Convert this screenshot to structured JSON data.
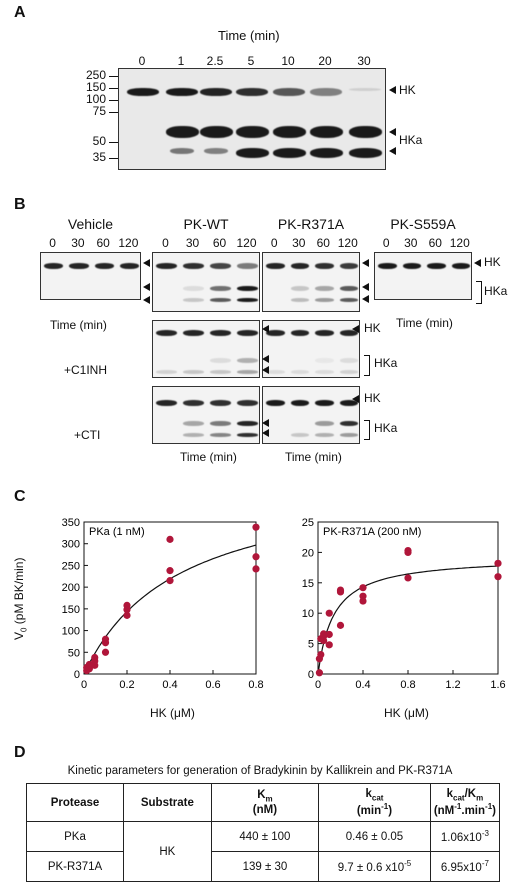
{
  "panelA": {
    "label": "A",
    "title": "Time (min)",
    "times": [
      "0",
      "1",
      "2.5",
      "5",
      "10",
      "20",
      "30"
    ],
    "mw": [
      "250",
      "150",
      "100",
      "75",
      "50",
      "35"
    ],
    "hk": "HK",
    "hka": "HKa"
  },
  "panelB": {
    "label": "B",
    "groups": [
      {
        "title": "Vehicle",
        "times": [
          "0",
          "30",
          "60",
          "120"
        ],
        "xlabel": "Time (min)"
      },
      {
        "title": "PK-WT",
        "times": [
          "0",
          "30",
          "60",
          "120"
        ],
        "xlabel": "Time (min)"
      },
      {
        "title": "PK-R371A",
        "times": [
          "0",
          "30",
          "60",
          "120"
        ],
        "xlabel": "Time (min)"
      },
      {
        "title": "PK-S559A",
        "times": [
          "0",
          "30",
          "60",
          "120"
        ],
        "xlabel": "Time (min)"
      }
    ],
    "hk": "HK",
    "hka": "HKa",
    "c1inh": "+C1INH",
    "cti": "+CTI"
  },
  "panelC": {
    "label": "C",
    "ylabel": "V",
    "ylabel_sub": "0",
    "ylabel_unit": " (pM BK/min)",
    "xlabel": "HK (μM)",
    "color": "#b0163a"
  },
  "chart_data": [
    {
      "type": "scatter",
      "title": "PKa (1 nM)",
      "xlabel": "HK (μM)",
      "ylabel": "V0 (pM BK/min)",
      "xlim": [
        0,
        0.8
      ],
      "ylim": [
        0,
        350
      ],
      "xticks": [
        "0",
        "0.2",
        "0.4",
        "0.6",
        "0.8"
      ],
      "xtick_values": [
        0,
        0.2,
        0.4,
        0.6,
        0.8
      ],
      "yticks": [
        "0",
        "50",
        "100",
        "150",
        "200",
        "250",
        "300",
        "350"
      ],
      "ytick_values": [
        0,
        50,
        100,
        150,
        200,
        250,
        300,
        350
      ],
      "x": [
        0.0125,
        0.0125,
        0.025,
        0.025,
        0.05,
        0.05,
        0.05,
        0.1,
        0.1,
        0.1,
        0.2,
        0.2,
        0.2,
        0.4,
        0.4,
        0.4,
        0.8,
        0.8,
        0.8
      ],
      "y": [
        8,
        15,
        12,
        22,
        20,
        30,
        38,
        50,
        72,
        80,
        135,
        148,
        158,
        215,
        238,
        310,
        242,
        270,
        338
      ],
      "fit": {
        "vmax": 460,
        "km": 0.44
      }
    },
    {
      "type": "scatter",
      "title": "PK-R371A (200 nM)",
      "xlabel": "HK (μM)",
      "ylabel": "",
      "xlim": [
        0,
        1.6
      ],
      "ylim": [
        0,
        25
      ],
      "xticks": [
        "0",
        "0.4",
        "0.8",
        "1.2",
        "1.6"
      ],
      "xtick_values": [
        0,
        0.4,
        0.8,
        1.2,
        1.6
      ],
      "yticks": [
        "0",
        "5",
        "10",
        "15",
        "20",
        "25"
      ],
      "ytick_values": [
        0,
        5,
        10,
        15,
        20,
        25
      ],
      "x": [
        0.0125,
        0.0125,
        0.025,
        0.025,
        0.05,
        0.05,
        0.05,
        0.1,
        0.1,
        0.1,
        0.2,
        0.2,
        0.2,
        0.4,
        0.4,
        0.4,
        0.8,
        0.8,
        0.8,
        1.6,
        1.6
      ],
      "y": [
        0.2,
        2.5,
        3.2,
        5.8,
        6.2,
        6.6,
        5.5,
        4.8,
        6.5,
        10,
        8,
        13.5,
        13.8,
        12,
        12.8,
        14.2,
        15.8,
        20,
        20.3,
        16,
        18.2
      ],
      "fit": {
        "vmax": 19.3,
        "km": 0.139
      }
    }
  ],
  "panelD": {
    "label": "D",
    "caption": "Kinetic parameters for generation of Bradykinin by Kallikrein and PK-R371A",
    "headers": {
      "protease": "Protease",
      "substrate": "Substrate",
      "km": "K",
      "km_sub": "m",
      "km_unit": "(nM)",
      "kcat": "k",
      "kcat_sub": "cat",
      "kcat_unit_pre": "(min",
      "kcat_unit_sup": "-1",
      "kcat_unit_post": ")",
      "eff1": "k",
      "eff1_sub": "cat",
      "eff2": "/K",
      "eff2_sub": "m",
      "eff_unit": "(nM-1.min-1)",
      "eff_unit_a": "(nM",
      "eff_unit_sup1": "-1",
      "eff_unit_b": ".min",
      "eff_unit_sup2": "-1",
      "eff_unit_c": ")"
    },
    "rows": [
      {
        "protease": "PKa",
        "km": "440 ± 100",
        "kcat": "0.46 ± 0.05",
        "eff": "1.06x10",
        "eff_exp": "-3"
      },
      {
        "protease": "PK-R371A",
        "km": "139 ± 30",
        "kcat": "9.7 ± 0.6 x10",
        "kcat_exp": "-5",
        "eff": "6.95x10",
        "eff_exp": "-7"
      }
    ],
    "substrate": "HK"
  }
}
